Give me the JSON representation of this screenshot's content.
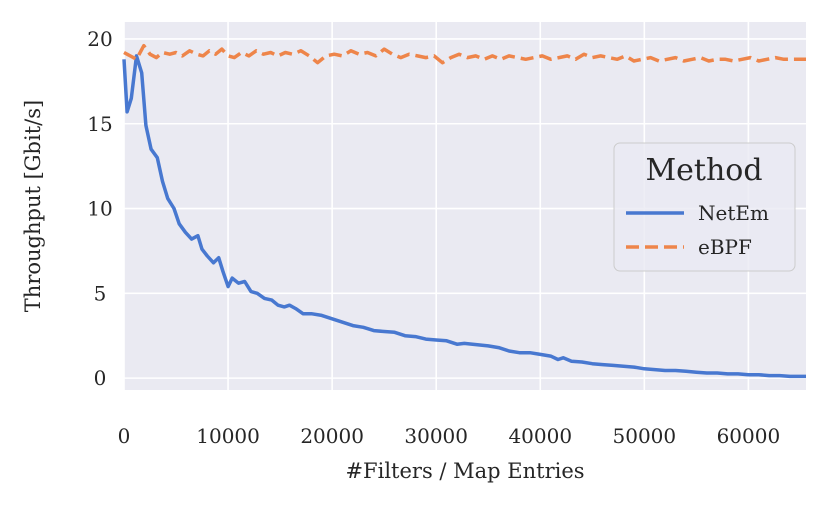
{
  "chart_data": {
    "type": "line",
    "title": "",
    "xlabel": "#Filters / Map Entries",
    "ylabel": "Throughput [Gbit/s]",
    "xlim": [
      0,
      65536
    ],
    "ylim": [
      -0.7,
      21
    ],
    "xticks": [
      0,
      10000,
      20000,
      30000,
      40000,
      50000,
      60000
    ],
    "xtick_labels": [
      "0",
      "10000",
      "20000",
      "30000",
      "40000",
      "50000",
      "60000"
    ],
    "yticks": [
      0,
      5,
      10,
      15,
      20
    ],
    "ytick_labels": [
      "0",
      "5",
      "10",
      "15",
      "20"
    ],
    "grid": true,
    "legend": {
      "title": "Method",
      "position": "right"
    },
    "series": [
      {
        "name": "NetEm",
        "color": "#4878d0",
        "dash": "solid",
        "x": [
          0,
          300,
          700,
          1200,
          1700,
          2100,
          2600,
          3200,
          3700,
          4200,
          4800,
          5300,
          5900,
          6500,
          7100,
          7500,
          8000,
          8600,
          9100,
          9500,
          10000,
          10400,
          11000,
          11600,
          12200,
          12800,
          13500,
          14200,
          14800,
          15400,
          15900,
          16500,
          17200,
          18000,
          19000,
          20000,
          21000,
          22000,
          23000,
          23500,
          24000,
          25000,
          26000,
          27000,
          28000,
          29000,
          30000,
          31000,
          32000,
          32700,
          33500,
          35000,
          36000,
          37000,
          38000,
          39000,
          40000,
          41000,
          41700,
          42200,
          43000,
          44000,
          45000,
          46000,
          47000,
          48000,
          49000,
          50000,
          51000,
          52000,
          53000,
          54000,
          55000,
          56000,
          57000,
          58000,
          59000,
          60000,
          61000,
          62000,
          63000,
          64000,
          65536
        ],
        "values": [
          18.8,
          15.7,
          16.5,
          19.0,
          18.0,
          14.9,
          13.5,
          13.0,
          11.6,
          10.6,
          10.0,
          9.1,
          8.6,
          8.2,
          8.4,
          7.6,
          7.2,
          6.8,
          7.1,
          6.3,
          5.4,
          5.9,
          5.6,
          5.7,
          5.1,
          5.0,
          4.7,
          4.6,
          4.3,
          4.2,
          4.3,
          4.1,
          3.8,
          3.8,
          3.7,
          3.5,
          3.3,
          3.1,
          3.0,
          2.9,
          2.8,
          2.75,
          2.7,
          2.5,
          2.45,
          2.3,
          2.25,
          2.2,
          2.0,
          2.05,
          2.0,
          1.9,
          1.8,
          1.6,
          1.5,
          1.5,
          1.4,
          1.3,
          1.1,
          1.2,
          1.0,
          0.95,
          0.85,
          0.8,
          0.75,
          0.7,
          0.65,
          0.55,
          0.5,
          0.45,
          0.45,
          0.4,
          0.35,
          0.3,
          0.3,
          0.25,
          0.25,
          0.2,
          0.2,
          0.15,
          0.15,
          0.1,
          0.1
        ]
      },
      {
        "name": "eBPF",
        "color": "#ee854a",
        "dash": "dashed",
        "x": [
          0,
          600,
          1200,
          1900,
          2500,
          3100,
          3700,
          4400,
          5000,
          5600,
          6300,
          7000,
          7600,
          8200,
          8800,
          9400,
          10000,
          10600,
          11300,
          12000,
          12700,
          13400,
          14100,
          14800,
          15500,
          16200,
          17000,
          17800,
          18600,
          19400,
          20200,
          21000,
          21800,
          22600,
          23400,
          24200,
          25000,
          25800,
          26600,
          27400,
          28200,
          29000,
          29800,
          30600,
          31400,
          32200,
          33000,
          33800,
          34600,
          35400,
          36200,
          37000,
          37800,
          38600,
          39400,
          40200,
          41000,
          41800,
          42600,
          43400,
          44200,
          45000,
          45800,
          46600,
          47400,
          48200,
          49000,
          49800,
          50600,
          51400,
          52200,
          53000,
          53800,
          54600,
          55400,
          56200,
          57000,
          57800,
          58600,
          59400,
          60200,
          61000,
          61800,
          62600,
          63400,
          64200,
          65536
        ],
        "values": [
          19.2,
          19.0,
          18.8,
          19.6,
          19.1,
          18.9,
          19.2,
          19.1,
          19.2,
          19.0,
          19.3,
          19.1,
          19.0,
          19.3,
          19.1,
          19.4,
          19.0,
          18.9,
          19.2,
          19.0,
          19.3,
          19.1,
          19.2,
          19.0,
          19.2,
          19.1,
          19.3,
          19.0,
          18.6,
          19.0,
          19.1,
          19.0,
          19.3,
          19.1,
          19.2,
          19.0,
          19.4,
          19.1,
          18.9,
          19.1,
          19.0,
          18.9,
          19.0,
          18.6,
          18.9,
          19.1,
          18.9,
          19.0,
          18.8,
          19.0,
          18.8,
          19.0,
          18.9,
          18.8,
          18.9,
          19.0,
          18.8,
          18.9,
          19.0,
          18.8,
          19.1,
          18.9,
          19.0,
          18.9,
          18.8,
          19.0,
          18.7,
          18.8,
          18.9,
          18.7,
          18.8,
          18.9,
          18.7,
          18.8,
          18.9,
          18.7,
          18.8,
          18.8,
          18.7,
          18.8,
          18.9,
          18.7,
          18.8,
          18.9,
          18.8,
          18.8,
          18.8
        ]
      }
    ]
  }
}
